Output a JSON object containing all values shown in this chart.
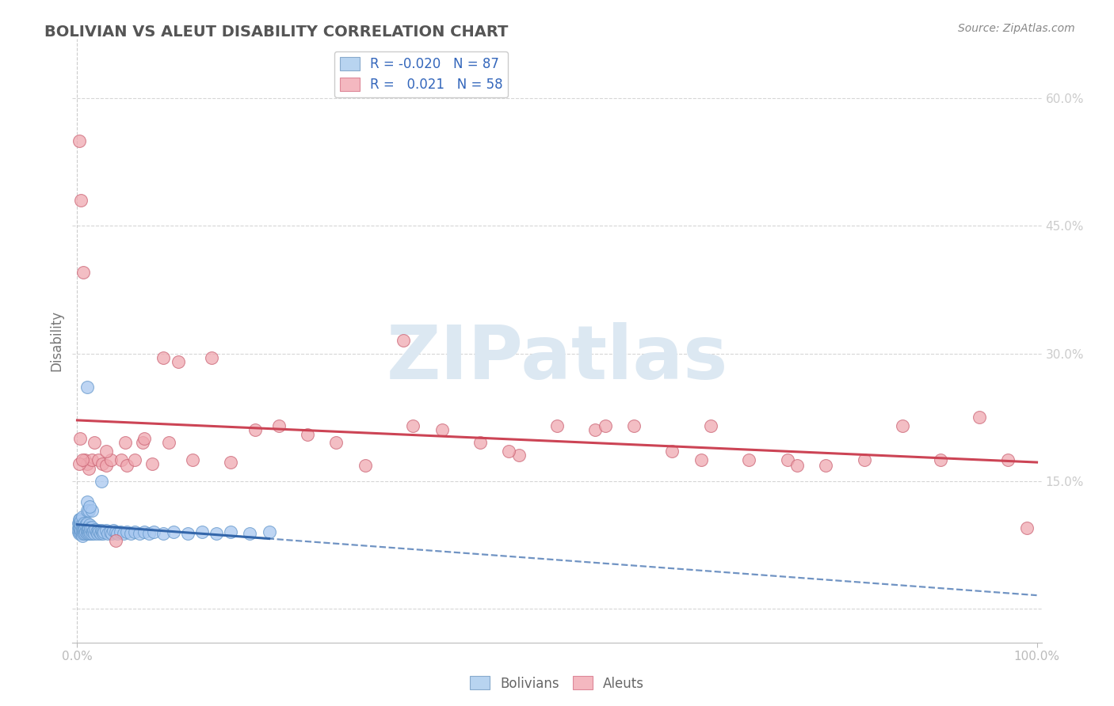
{
  "title": "BOLIVIAN VS ALEUT DISABILITY CORRELATION CHART",
  "source": "Source: ZipAtlas.com",
  "ylabel": "Disability",
  "xlim": [
    -0.005,
    1.005
  ],
  "ylim": [
    -0.04,
    0.67
  ],
  "yticks_right": [
    0.0,
    0.15,
    0.3,
    0.45,
    0.6
  ],
  "background_color": "#ffffff",
  "grid_color": "#cccccc",
  "title_color": "#555555",
  "axis_color": "#999999",
  "tick_color": "#5588cc",
  "watermark_text": "ZIPatlas",
  "watermark_color": "#dce8f2",
  "bolivians": {
    "name": "Bolivians",
    "color": "#a8c8f0",
    "edge_color": "#6699cc",
    "R": -0.02,
    "N": 87,
    "trend_color": "#3366aa",
    "x": [
      0.001,
      0.001,
      0.001,
      0.002,
      0.002,
      0.002,
      0.002,
      0.003,
      0.003,
      0.003,
      0.003,
      0.004,
      0.004,
      0.004,
      0.004,
      0.005,
      0.005,
      0.005,
      0.005,
      0.005,
      0.006,
      0.006,
      0.006,
      0.007,
      0.007,
      0.007,
      0.008,
      0.008,
      0.009,
      0.009,
      0.01,
      0.01,
      0.01,
      0.011,
      0.011,
      0.012,
      0.012,
      0.013,
      0.013,
      0.014,
      0.014,
      0.015,
      0.015,
      0.016,
      0.017,
      0.018,
      0.019,
      0.02,
      0.021,
      0.022,
      0.023,
      0.024,
      0.025,
      0.026,
      0.027,
      0.028,
      0.03,
      0.032,
      0.034,
      0.036,
      0.038,
      0.04,
      0.042,
      0.045,
      0.048,
      0.052,
      0.056,
      0.06,
      0.065,
      0.07,
      0.075,
      0.08,
      0.09,
      0.1,
      0.115,
      0.13,
      0.145,
      0.16,
      0.18,
      0.2,
      0.01,
      0.01,
      0.01,
      0.012,
      0.015,
      0.013,
      0.025
    ],
    "y": [
      0.095,
      0.09,
      0.1,
      0.088,
      0.095,
      0.1,
      0.105,
      0.09,
      0.095,
      0.1,
      0.105,
      0.088,
      0.092,
      0.098,
      0.103,
      0.085,
      0.09,
      0.095,
      0.1,
      0.108,
      0.088,
      0.093,
      0.098,
      0.09,
      0.095,
      0.1,
      0.088,
      0.096,
      0.09,
      0.098,
      0.088,
      0.093,
      0.1,
      0.09,
      0.096,
      0.088,
      0.095,
      0.09,
      0.098,
      0.088,
      0.095,
      0.088,
      0.096,
      0.09,
      0.092,
      0.088,
      0.093,
      0.09,
      0.088,
      0.092,
      0.09,
      0.088,
      0.092,
      0.09,
      0.088,
      0.09,
      0.092,
      0.088,
      0.09,
      0.088,
      0.092,
      0.09,
      0.088,
      0.09,
      0.088,
      0.09,
      0.088,
      0.09,
      0.088,
      0.09,
      0.088,
      0.09,
      0.088,
      0.09,
      0.088,
      0.09,
      0.088,
      0.09,
      0.088,
      0.09,
      0.26,
      0.115,
      0.125,
      0.115,
      0.115,
      0.12,
      0.15
    ]
  },
  "aleuts": {
    "name": "Aleuts",
    "color": "#f0a8b0",
    "edge_color": "#cc6677",
    "R": 0.021,
    "N": 58,
    "trend_color": "#cc4455",
    "x": [
      0.002,
      0.004,
      0.006,
      0.008,
      0.01,
      0.012,
      0.015,
      0.018,
      0.022,
      0.026,
      0.03,
      0.035,
      0.04,
      0.046,
      0.052,
      0.06,
      0.068,
      0.078,
      0.09,
      0.105,
      0.12,
      0.14,
      0.16,
      0.185,
      0.21,
      0.24,
      0.27,
      0.3,
      0.34,
      0.38,
      0.42,
      0.46,
      0.5,
      0.54,
      0.58,
      0.62,
      0.66,
      0.7,
      0.74,
      0.78,
      0.82,
      0.86,
      0.9,
      0.94,
      0.97,
      0.99,
      0.35,
      0.45,
      0.55,
      0.65,
      0.75,
      0.03,
      0.05,
      0.07,
      0.095,
      0.002,
      0.003,
      0.005
    ],
    "y": [
      0.55,
      0.48,
      0.395,
      0.175,
      0.17,
      0.165,
      0.175,
      0.195,
      0.175,
      0.17,
      0.168,
      0.175,
      0.08,
      0.175,
      0.168,
      0.175,
      0.195,
      0.17,
      0.295,
      0.29,
      0.175,
      0.295,
      0.172,
      0.21,
      0.215,
      0.205,
      0.195,
      0.168,
      0.315,
      0.21,
      0.195,
      0.18,
      0.215,
      0.21,
      0.215,
      0.185,
      0.215,
      0.175,
      0.175,
      0.168,
      0.175,
      0.215,
      0.175,
      0.225,
      0.175,
      0.095,
      0.215,
      0.185,
      0.215,
      0.175,
      0.168,
      0.185,
      0.195,
      0.2,
      0.195,
      0.17,
      0.2,
      0.175
    ]
  },
  "legend_upper": {
    "blue_label": "R = -0.020   N = 87",
    "pink_label": "R =   0.021   N = 58"
  }
}
